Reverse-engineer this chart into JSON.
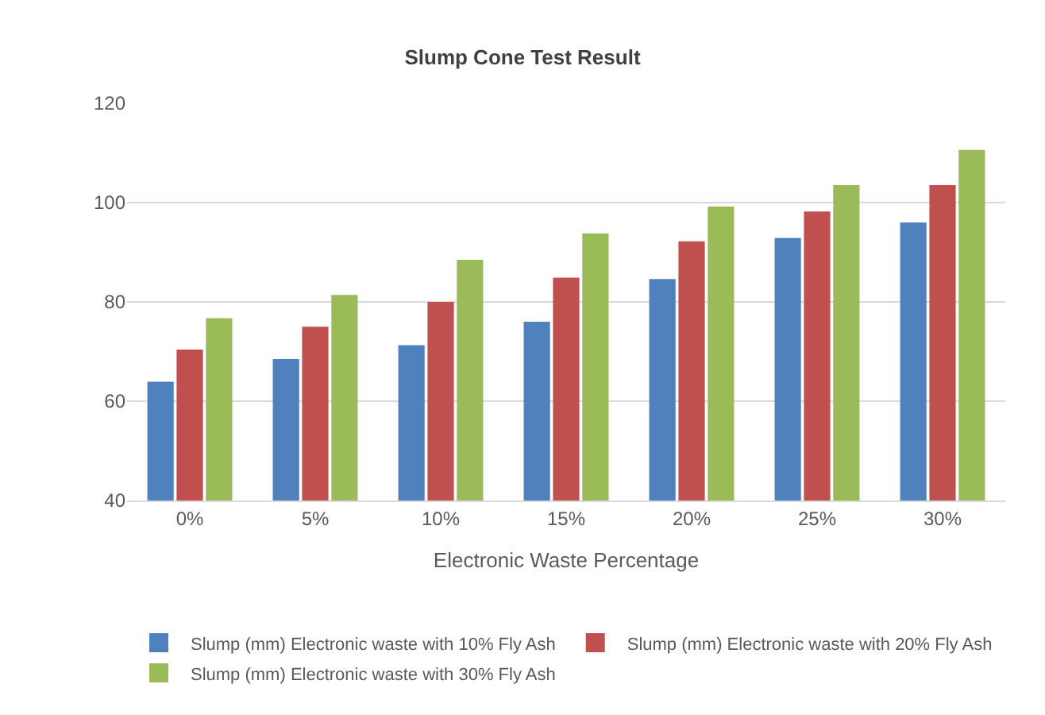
{
  "chart_data": {
    "type": "bar",
    "title": "Slump Cone Test Result",
    "xlabel": "Electronic Waste Percentage",
    "categories": [
      "0%",
      "5%",
      "10%",
      "15%",
      "20%",
      "25%",
      "30%"
    ],
    "series": [
      {
        "name": "Slump (mm) Electronic waste with 10% Fly Ash",
        "color": "#4f81bd",
        "values": [
          63.9,
          68.5,
          71.3,
          76,
          84.6,
          92.9,
          96
        ]
      },
      {
        "name": "Slump (mm) Electronic waste with 20% Fly Ash",
        "color": "#c0504d",
        "values": [
          70.4,
          75,
          80,
          84.9,
          92.2,
          98.2,
          103.5
        ]
      },
      {
        "name": "Slump (mm) Electronic waste with 30% Fly Ash",
        "color": "#9bbb59",
        "values": [
          76.7,
          81.4,
          88.5,
          93.8,
          99.2,
          103.5,
          110.6
        ]
      }
    ],
    "ylim": [
      40,
      120
    ],
    "yticks": [
      40,
      60,
      80,
      100,
      120
    ],
    "grid": "y",
    "legend": "bottom"
  }
}
